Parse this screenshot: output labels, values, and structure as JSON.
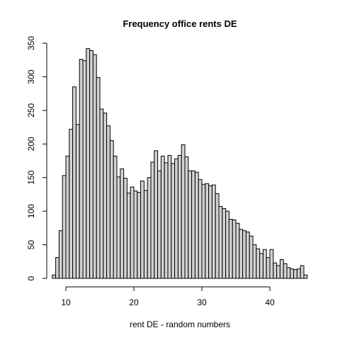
{
  "chart_data": {
    "type": "bar",
    "title": "Frequency office rents DE",
    "xlabel": "rent DE - random numbers",
    "ylabel": "",
    "bin_width": 0.5,
    "bin_start": 8,
    "xlim": [
      8,
      45.5
    ],
    "ylim": [
      0,
      350
    ],
    "x_ticks": [
      10,
      20,
      30,
      40
    ],
    "y_ticks": [
      0,
      50,
      100,
      150,
      200,
      250,
      300,
      350
    ],
    "grid": false,
    "legend": "none",
    "bar_fill": "#d3d3d3",
    "bar_stroke": "#000000",
    "values": [
      5,
      31,
      71,
      153,
      182,
      222,
      285,
      229,
      326,
      324,
      342,
      339,
      333,
      299,
      252,
      246,
      227,
      205,
      182,
      151,
      163,
      149,
      127,
      136,
      130,
      128,
      145,
      131,
      150,
      173,
      190,
      160,
      182,
      172,
      183,
      171,
      178,
      183,
      199,
      181,
      160,
      160,
      158,
      147,
      140,
      141,
      138,
      139,
      126,
      107,
      104,
      100,
      88,
      87,
      82,
      73,
      71,
      69,
      63,
      50,
      44,
      37,
      43,
      31,
      43,
      23,
      19,
      28,
      22,
      16,
      14,
      13,
      14,
      19,
      5
    ]
  }
}
